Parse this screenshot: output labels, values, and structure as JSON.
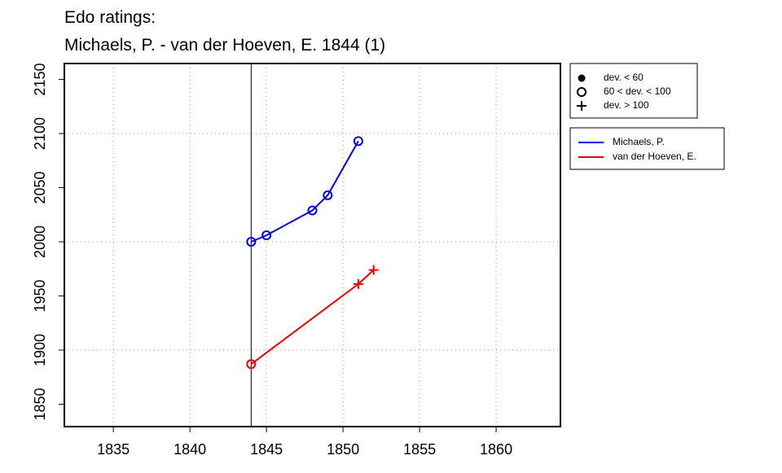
{
  "chart_data": {
    "type": "line",
    "title": "Edo ratings:",
    "subtitle": "Michaels, P. - van der Hoeven, E. 1844 (1)",
    "xlim": [
      1831.8,
      1864.2
    ],
    "ylim": [
      1829.3,
      2164.7
    ],
    "xticks": [
      1835,
      1840,
      1845,
      1850,
      1855,
      1860
    ],
    "yticks": [
      1850,
      1900,
      1950,
      2000,
      2050,
      2100,
      2150
    ],
    "xgrid": [
      1835,
      1840,
      1845,
      1850,
      1855,
      1860
    ],
    "ygrid": [
      1900,
      2000,
      2100
    ],
    "vline": 1844,
    "marker_legend": [
      {
        "label": "dev. < 60",
        "marker": "dot"
      },
      {
        "label": "60 < dev. < 100",
        "marker": "circle"
      },
      {
        "label": "dev. > 100",
        "marker": "plus"
      }
    ],
    "series": [
      {
        "name": "Michaels, P.",
        "color": "#0000ee",
        "x": [
          1844,
          1845,
          1848,
          1849,
          1851
        ],
        "values": [
          2000,
          2006,
          2029,
          2043,
          2093
        ],
        "markers": [
          "circle",
          "circle",
          "circle",
          "circle",
          "circle"
        ]
      },
      {
        "name": "van der Hoeven, E.",
        "color": "#ee0000",
        "x": [
          1844,
          1851,
          1852
        ],
        "values": [
          1887,
          1961,
          1974
        ],
        "markers": [
          "circle",
          "plus",
          "plus"
        ]
      }
    ]
  }
}
